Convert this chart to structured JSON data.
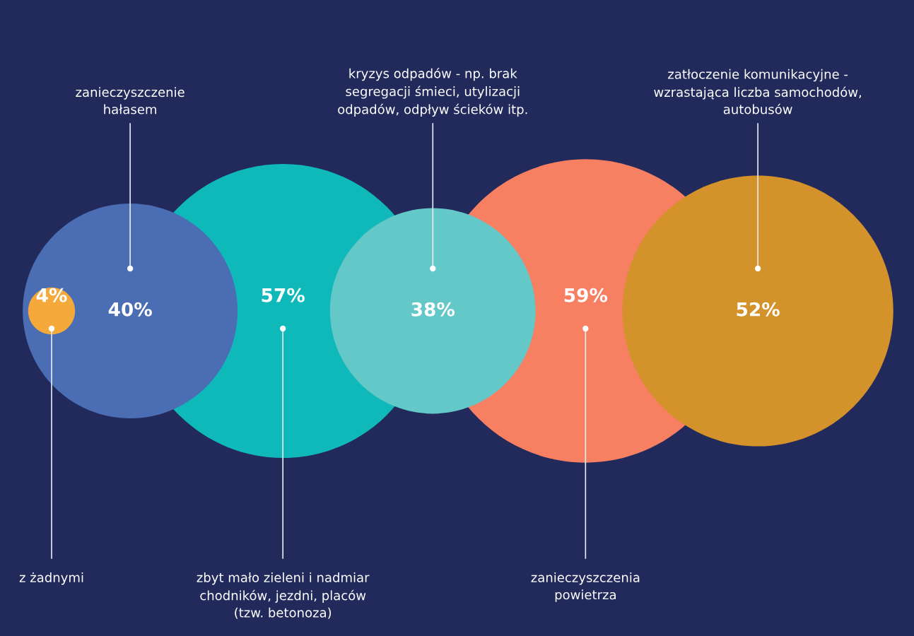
{
  "chart_data": {
    "type": "other",
    "categories": [
      "z żadnymi",
      "zanieczyszczenie\nhałasem",
      "zbyt mało zieleni i nadmiar\nchodników, jezdni, placów\n(tzw. betonoza)",
      "kryzys odpadów - np. brak\nsegregacji śmieci, utylizacji\nodpadów, odpływ ścieków itp.",
      "zanieczyszczenia\npowietrza",
      "zatłoczenie komunikacyjne -\nwzrastająca liczba samochodów,\nautobusów"
    ],
    "values": [
      4,
      40,
      57,
      38,
      59,
      52
    ],
    "value_labels": [
      "4%",
      "40%",
      "57%",
      "38%",
      "59%",
      "52%"
    ],
    "colors": [
      "#f4a93a",
      "#4a6db3",
      "#10b9b9",
      "#64c7c8",
      "#f77f62",
      "#d3922a"
    ]
  }
}
